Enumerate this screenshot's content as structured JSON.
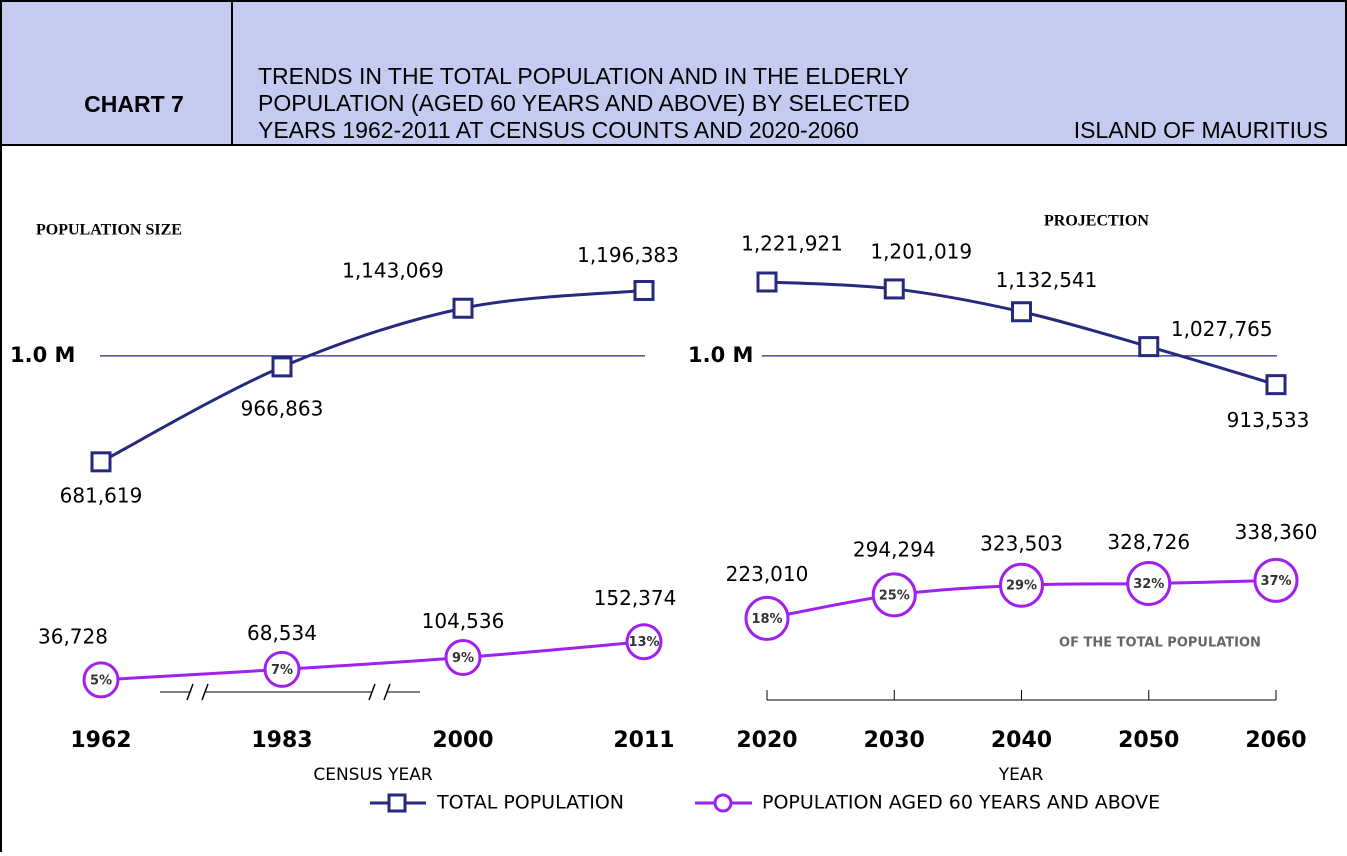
{
  "header": {
    "label": "CHART 7",
    "title_lines": [
      "TRENDS IN THE TOTAL POPULATION AND IN THE ELDERLY",
      "POPULATION (AGED 60 YEARS AND ABOVE) BY SELECTED",
      "YEARS 1962-2011 AT CENSUS COUNTS AND 2020-2060"
    ],
    "region": "ISLAND OF MAURITIUS"
  },
  "chart_data": [
    {
      "type": "line",
      "title": "POPULATION SIZE",
      "x_label": "CENSUS YEAR",
      "axis_break": true,
      "categories": [
        "1962",
        "1983",
        "2000",
        "2011"
      ],
      "ylim": [
        600000,
        1300000
      ],
      "yticks": [
        {
          "value": 1000000,
          "label": "1.0 M"
        }
      ],
      "y2lim": [
        0,
        400000
      ],
      "series": [
        {
          "name": "TOTAL POPULATION",
          "color": "#262a7f",
          "marker": "square",
          "values": [
            681619,
            966863,
            1143069,
            1196383
          ],
          "value_labels": [
            "681,619",
            "966,863",
            "1,143,069",
            "1,196,383"
          ]
        },
        {
          "name": "POPULATION AGED 60 YEARS AND ABOVE",
          "color": "#a020f0",
          "marker": "circle",
          "axis": "y2",
          "values": [
            36728,
            68534,
            104536,
            152374
          ],
          "value_labels": [
            "36,728",
            "68,534",
            "104,536",
            "152,374"
          ],
          "shares": [
            5,
            7,
            9,
            13
          ],
          "share_labels": [
            "5%",
            "7%",
            "9%",
            "13%"
          ]
        }
      ]
    },
    {
      "type": "line",
      "title": "PROJECTION",
      "x_label": "YEAR",
      "axis_break": false,
      "annotation": "OF THE TOTAL POPULATION",
      "categories": [
        "2020",
        "2030",
        "2040",
        "2050",
        "2060"
      ],
      "ylim": [
        600000,
        1300000
      ],
      "yticks": [
        {
          "value": 1000000,
          "label": "1.0 M"
        }
      ],
      "y2lim": [
        0,
        400000
      ],
      "series": [
        {
          "name": "TOTAL POPULATION",
          "color": "#262a7f",
          "marker": "square",
          "values": [
            1221921,
            1201019,
            1132541,
            1027765,
            913533
          ],
          "value_labels": [
            "1,221,921",
            "1,201,019",
            "1,132,541",
            "1,027,765",
            "913,533"
          ]
        },
        {
          "name": "POPULATION AGED 60 YEARS AND ABOVE",
          "color": "#a020f0",
          "marker": "circle",
          "axis": "y2",
          "values": [
            223010,
            294294,
            323503,
            328726,
            338360
          ],
          "value_labels": [
            "223,010",
            "294,294",
            "323,503",
            "328,726",
            "338,360"
          ],
          "shares": [
            18,
            25,
            29,
            32,
            37
          ],
          "share_labels": [
            "18%",
            "25%",
            "29%",
            "32%",
            "37%"
          ]
        }
      ]
    }
  ]
}
